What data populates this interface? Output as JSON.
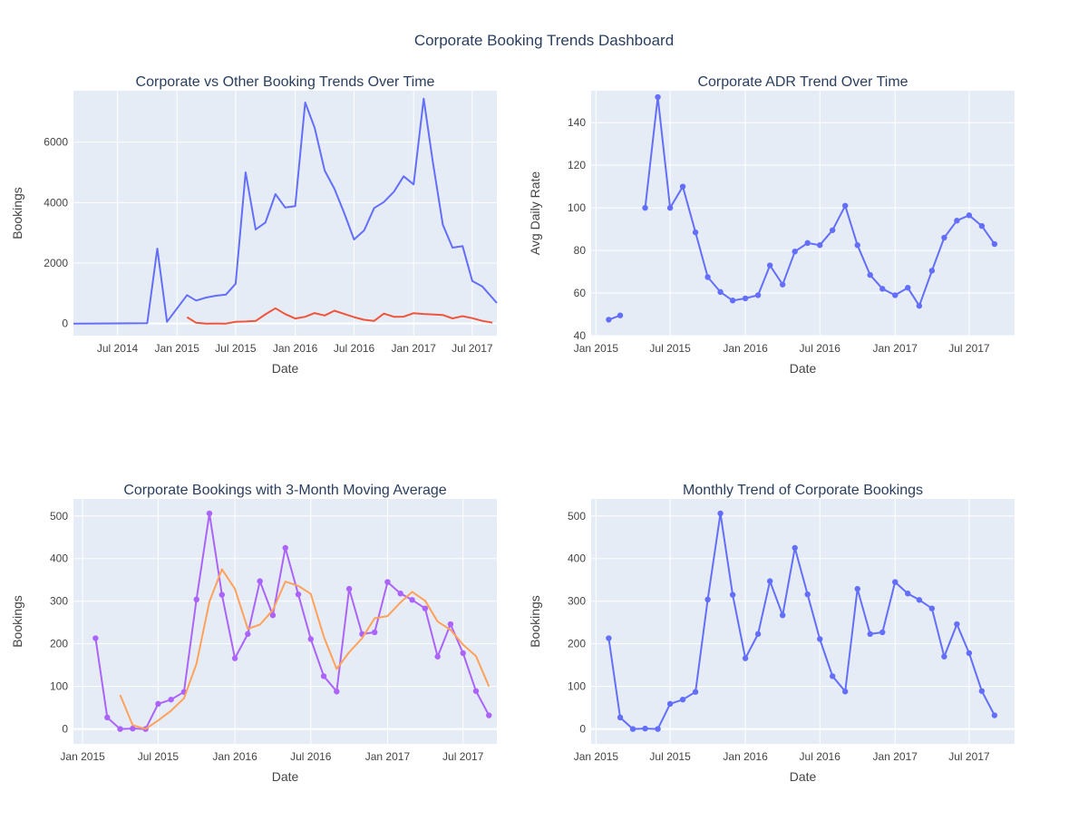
{
  "title": "Corporate Booking Trends Dashboard",
  "colors": {
    "plot_bg": "#e5ecf6",
    "grid": "#ffffff",
    "text": "#444444",
    "title_text": "#2a3f5f",
    "blue": "#636efa",
    "red": "#ef553b",
    "purple": "#ab63fa",
    "orange": "#ffa15a"
  },
  "chart_data": [
    {
      "type": "line",
      "title": "Corporate vs Other Booking Trends Over Time",
      "xlabel": "Date",
      "ylabel": "Bookings",
      "x_type": "date",
      "xlim": [
        "2014-02-15",
        "2017-09-15"
      ],
      "ylim": [
        -400,
        7700
      ],
      "x_ticks": [
        {
          "x": "2014-07-01",
          "label": "Jul 2014"
        },
        {
          "x": "2015-01-01",
          "label": "Jan 2015"
        },
        {
          "x": "2015-07-01",
          "label": "Jul 2015"
        },
        {
          "x": "2016-01-01",
          "label": "Jan 2016"
        },
        {
          "x": "2016-07-01",
          "label": "Jul 2016"
        },
        {
          "x": "2017-01-01",
          "label": "Jan 2017"
        },
        {
          "x": "2017-07-01",
          "label": "Jul 2017"
        }
      ],
      "y_ticks": [
        0,
        2000,
        4000,
        6000
      ],
      "y_tick_labels": [
        "0",
        "2000",
        "4000",
        "6000"
      ],
      "grid": true,
      "series": [
        {
          "color": "#636efa",
          "mode": "lines",
          "x": [
            "2014-02-15",
            "2014-10-01",
            "2014-11-01",
            "2014-12-01",
            "2015-02-01",
            "2015-03-01",
            "2015-04-01",
            "2015-05-01",
            "2015-06-01",
            "2015-07-01",
            "2015-08-01",
            "2015-09-01",
            "2015-10-01",
            "2015-11-01",
            "2015-12-01",
            "2016-01-01",
            "2016-02-01",
            "2016-03-01",
            "2016-04-01",
            "2016-05-01",
            "2016-06-01",
            "2016-07-01",
            "2016-08-01",
            "2016-09-01",
            "2016-10-01",
            "2016-11-01",
            "2016-12-01",
            "2017-01-01",
            "2017-02-01",
            "2017-03-01",
            "2017-04-01",
            "2017-05-01",
            "2017-06-01",
            "2017-07-01",
            "2017-08-01",
            "2017-09-15"
          ],
          "y": [
            0,
            10,
            2480,
            60,
            940,
            760,
            860,
            920,
            960,
            1320,
            5000,
            3110,
            3340,
            4280,
            3840,
            3880,
            7310,
            6480,
            5060,
            4460,
            3640,
            2780,
            3080,
            3820,
            4020,
            4360,
            4870,
            4600,
            7440,
            5360,
            3270,
            2510,
            2560,
            1410,
            1230,
            680
          ]
        },
        {
          "color": "#ef553b",
          "mode": "lines",
          "x": [
            "2015-02-01",
            "2015-03-01",
            "2015-04-01",
            "2015-05-01",
            "2015-06-01",
            "2015-07-01",
            "2015-08-01",
            "2015-09-01",
            "2015-10-01",
            "2015-11-01",
            "2015-12-01",
            "2016-01-01",
            "2016-02-01",
            "2016-03-01",
            "2016-04-01",
            "2016-05-01",
            "2016-06-01",
            "2016-07-01",
            "2016-08-01",
            "2016-09-01",
            "2016-10-01",
            "2016-11-01",
            "2016-12-01",
            "2017-01-01",
            "2017-02-01",
            "2017-03-01",
            "2017-04-01",
            "2017-05-01",
            "2017-06-01",
            "2017-07-01",
            "2017-08-01",
            "2017-09-01"
          ],
          "y": [
            213,
            27,
            0,
            1,
            0,
            59,
            69,
            87,
            304,
            506,
            315,
            166,
            223,
            347,
            267,
            425,
            316,
            211,
            124,
            88,
            329,
            223,
            227,
            345,
            318,
            303,
            283,
            170,
            246,
            178,
            89,
            32
          ]
        }
      ]
    },
    {
      "type": "line",
      "title": "Corporate ADR Trend Over Time",
      "xlabel": "Date",
      "ylabel": "Avg Daily Rate",
      "x_type": "date",
      "xlim": [
        "2014-12-20",
        "2017-10-20"
      ],
      "ylim": [
        40,
        155
      ],
      "x_ticks": [
        {
          "x": "2015-01-01",
          "label": "Jan 2015"
        },
        {
          "x": "2015-07-01",
          "label": "Jul 2015"
        },
        {
          "x": "2016-01-01",
          "label": "Jan 2016"
        },
        {
          "x": "2016-07-01",
          "label": "Jul 2016"
        },
        {
          "x": "2017-01-01",
          "label": "Jan 2017"
        },
        {
          "x": "2017-07-01",
          "label": "Jul 2017"
        }
      ],
      "y_ticks": [
        40,
        60,
        80,
        100,
        120,
        140
      ],
      "y_tick_labels": [
        "40",
        "60",
        "80",
        "100",
        "120",
        "140"
      ],
      "grid": true,
      "series": [
        {
          "color": "#636efa",
          "mode": "lines+markers",
          "x": [
            "2015-02-01",
            "2015-03-01",
            null,
            "2015-05-01",
            "2015-06-01",
            "2015-07-01",
            "2015-08-01",
            "2015-09-01",
            "2015-10-01",
            "2015-11-01",
            "2015-12-01",
            "2016-01-01",
            "2016-02-01",
            "2016-03-01",
            "2016-04-01",
            "2016-05-01",
            "2016-06-01",
            "2016-07-01",
            "2016-08-01",
            "2016-09-01",
            "2016-10-01",
            "2016-11-01",
            "2016-12-01",
            "2017-01-01",
            "2017-02-01",
            "2017-03-01",
            "2017-04-01",
            "2017-05-01",
            "2017-06-01",
            "2017-07-01",
            "2017-08-01",
            "2017-09-01"
          ],
          "y": [
            47.5,
            49.5,
            null,
            100,
            152,
            100,
            110,
            88.5,
            67.5,
            60.5,
            56.5,
            57.5,
            59,
            73,
            64,
            79.5,
            83.5,
            82.5,
            89.5,
            101,
            82.5,
            68.5,
            62,
            59,
            62.5,
            54,
            70.5,
            86,
            94,
            96.5,
            91.5,
            83
          ]
        }
      ]
    },
    {
      "type": "line",
      "title": "Corporate Bookings with 3-Month Moving Average",
      "xlabel": "Date",
      "ylabel": "Bookings",
      "x_type": "date",
      "xlim": [
        "2014-12-10",
        "2017-09-20"
      ],
      "ylim": [
        -35,
        540
      ],
      "x_ticks": [
        {
          "x": "2015-01-01",
          "label": "Jan 2015"
        },
        {
          "x": "2015-07-01",
          "label": "Jul 2015"
        },
        {
          "x": "2016-01-01",
          "label": "Jan 2016"
        },
        {
          "x": "2016-07-01",
          "label": "Jul 2016"
        },
        {
          "x": "2017-01-01",
          "label": "Jan 2017"
        },
        {
          "x": "2017-07-01",
          "label": "Jul 2017"
        }
      ],
      "y_ticks": [
        0,
        100,
        200,
        300,
        400,
        500
      ],
      "y_tick_labels": [
        "0",
        "100",
        "200",
        "300",
        "400",
        "500"
      ],
      "grid": true,
      "series": [
        {
          "color": "#ab63fa",
          "mode": "lines+markers",
          "x": [
            "2015-02-01",
            "2015-03-01",
            "2015-04-01",
            "2015-05-01",
            "2015-06-01",
            "2015-07-01",
            "2015-08-01",
            "2015-09-01",
            "2015-10-01",
            "2015-11-01",
            "2015-12-01",
            "2016-01-01",
            "2016-02-01",
            "2016-03-01",
            "2016-04-01",
            "2016-05-01",
            "2016-06-01",
            "2016-07-01",
            "2016-08-01",
            "2016-09-01",
            "2016-10-01",
            "2016-11-01",
            "2016-12-01",
            "2017-01-01",
            "2017-02-01",
            "2017-03-01",
            "2017-04-01",
            "2017-05-01",
            "2017-06-01",
            "2017-07-01",
            "2017-08-01",
            "2017-09-01"
          ],
          "y": [
            213,
            27,
            0,
            1,
            0,
            59,
            69,
            87,
            304,
            506,
            315,
            166,
            223,
            347,
            267,
            425,
            316,
            211,
            124,
            88,
            329,
            223,
            227,
            345,
            318,
            303,
            283,
            170,
            246,
            178,
            89,
            32
          ]
        },
        {
          "color": "#ffa15a",
          "mode": "lines",
          "x": [
            "2015-04-01",
            "2015-05-01",
            "2015-06-01",
            "2015-07-01",
            "2015-08-01",
            "2015-09-01",
            "2015-10-01",
            "2015-11-01",
            "2015-12-01",
            "2016-01-01",
            "2016-02-01",
            "2016-03-01",
            "2016-04-01",
            "2016-05-01",
            "2016-06-01",
            "2016-07-01",
            "2016-08-01",
            "2016-09-01",
            "2016-10-01",
            "2016-11-01",
            "2016-12-01",
            "2017-01-01",
            "2017-02-01",
            "2017-03-01",
            "2017-04-01",
            "2017-05-01",
            "2017-06-01",
            "2017-07-01",
            "2017-08-01",
            "2017-09-01"
          ],
          "y": [
            80,
            9,
            0,
            20,
            43,
            72,
            153,
            299,
            375,
            329,
            235,
            245,
            279,
            346,
            336,
            317,
            217,
            141,
            180,
            213,
            260,
            265,
            297,
            322,
            301,
            252,
            233,
            198,
            171,
            100
          ]
        }
      ]
    },
    {
      "type": "line",
      "title": "Monthly Trend of Corporate Bookings",
      "xlabel": "Date",
      "ylabel": "Bookings",
      "x_type": "date",
      "xlim": [
        "2014-12-20",
        "2017-10-20"
      ],
      "ylim": [
        -35,
        540
      ],
      "x_ticks": [
        {
          "x": "2015-01-01",
          "label": "Jan 2015"
        },
        {
          "x": "2015-07-01",
          "label": "Jul 2015"
        },
        {
          "x": "2016-01-01",
          "label": "Jan 2016"
        },
        {
          "x": "2016-07-01",
          "label": "Jul 2016"
        },
        {
          "x": "2017-01-01",
          "label": "Jan 2017"
        },
        {
          "x": "2017-07-01",
          "label": "Jul 2017"
        }
      ],
      "y_ticks": [
        0,
        100,
        200,
        300,
        400,
        500
      ],
      "y_tick_labels": [
        "0",
        "100",
        "200",
        "300",
        "400",
        "500"
      ],
      "grid": true,
      "series": [
        {
          "color": "#636efa",
          "mode": "lines+markers",
          "x": [
            "2015-02-01",
            "2015-03-01",
            "2015-04-01",
            "2015-05-01",
            "2015-06-01",
            "2015-07-01",
            "2015-08-01",
            "2015-09-01",
            "2015-10-01",
            "2015-11-01",
            "2015-12-01",
            "2016-01-01",
            "2016-02-01",
            "2016-03-01",
            "2016-04-01",
            "2016-05-01",
            "2016-06-01",
            "2016-07-01",
            "2016-08-01",
            "2016-09-01",
            "2016-10-01",
            "2016-11-01",
            "2016-12-01",
            "2017-01-01",
            "2017-02-01",
            "2017-03-01",
            "2017-04-01",
            "2017-05-01",
            "2017-06-01",
            "2017-07-01",
            "2017-08-01",
            "2017-09-01"
          ],
          "y": [
            213,
            27,
            0,
            1,
            0,
            59,
            69,
            87,
            304,
            506,
            315,
            166,
            223,
            347,
            267,
            425,
            316,
            211,
            124,
            88,
            329,
            223,
            227,
            345,
            318,
            303,
            283,
            170,
            246,
            178,
            89,
            32
          ]
        }
      ]
    }
  ]
}
